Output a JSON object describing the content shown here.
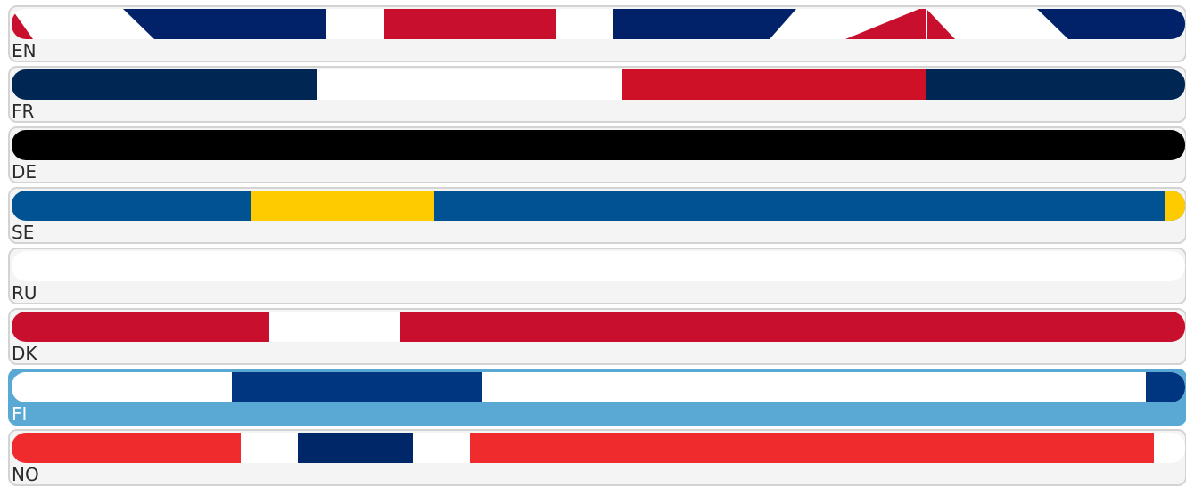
{
  "languages": [
    {
      "code": "EN",
      "flag": "uk-flag-icon",
      "selected": false
    },
    {
      "code": "FR",
      "flag": "france-flag-icon",
      "selected": false
    },
    {
      "code": "DE",
      "flag": "germany-flag-icon",
      "selected": false
    },
    {
      "code": "SE",
      "flag": "sweden-flag-icon",
      "selected": false
    },
    {
      "code": "RU",
      "flag": "russia-flag-icon",
      "selected": false
    },
    {
      "code": "DK",
      "flag": "denmark-flag-icon",
      "selected": false
    },
    {
      "code": "FI",
      "flag": "finland-flag-icon",
      "selected": true
    },
    {
      "code": "NO",
      "flag": "norway-flag-icon",
      "selected": false
    }
  ],
  "colors": {
    "selected_highlight": "#5aa8d4",
    "uk_blue": "#012169",
    "uk_red": "#C8102E",
    "fr_blue": "#002654",
    "fr_red": "#CE1126",
    "de_black": "#000000",
    "se_blue": "#005293",
    "se_yellow": "#FECB00",
    "dk_red": "#C8102E",
    "fi_blue": "#003580",
    "no_red": "#EF2B2D",
    "no_blue": "#002868"
  }
}
